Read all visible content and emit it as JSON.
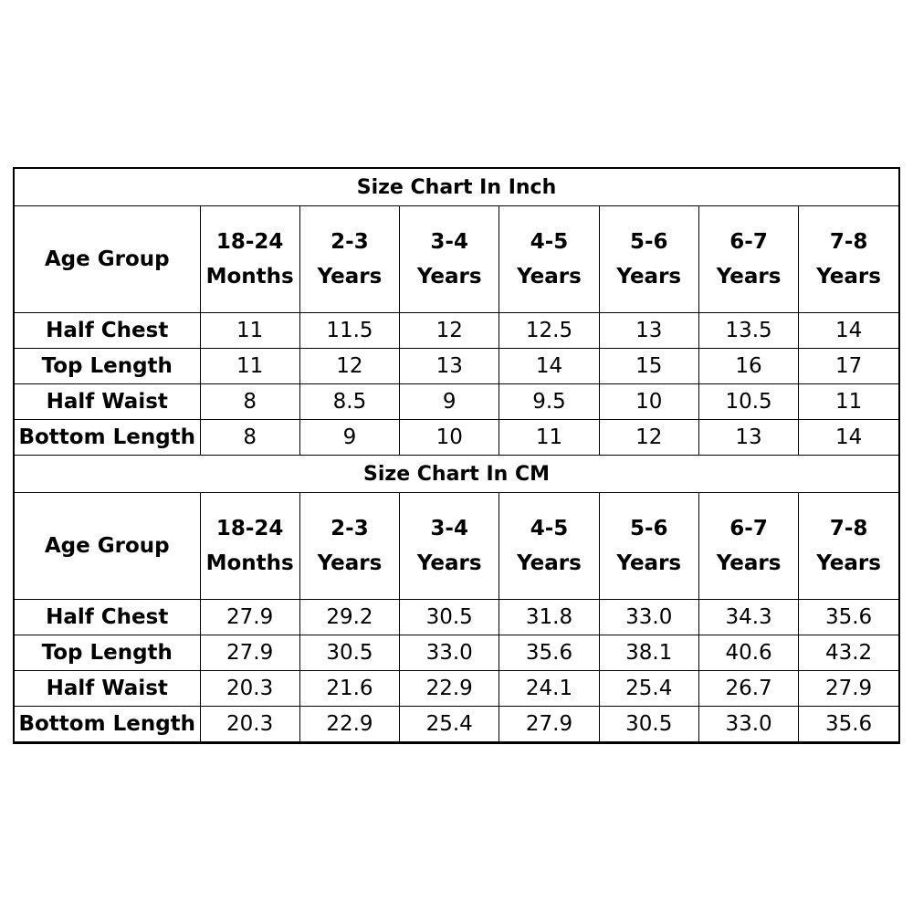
{
  "tables": [
    {
      "title": "Size Chart In Inch",
      "row_header": "Age Group",
      "columns": [
        [
          "18-24",
          "Months"
        ],
        [
          "2-3",
          "Years"
        ],
        [
          "3-4",
          "Years"
        ],
        [
          "4-5",
          "Years"
        ],
        [
          "5-6",
          "Years"
        ],
        [
          "6-7",
          "Years"
        ],
        [
          "7-8",
          "Years"
        ]
      ],
      "rows": [
        {
          "label": "Half Chest",
          "cells": [
            "11",
            "11.5",
            "12",
            "12.5",
            "13",
            "13.5",
            "14"
          ]
        },
        {
          "label": "Top Length",
          "cells": [
            "11",
            "12",
            "13",
            "14",
            "15",
            "16",
            "17"
          ]
        },
        {
          "label": "Half Waist",
          "cells": [
            "8",
            "8.5",
            "9",
            "9.5",
            "10",
            "10.5",
            "11"
          ]
        },
        {
          "label": "Bottom Length",
          "cells": [
            "8",
            "9",
            "10",
            "11",
            "12",
            "13",
            "14"
          ]
        }
      ]
    },
    {
      "title": "Size Chart In CM",
      "row_header": "Age Group",
      "columns": [
        [
          "18-24",
          "Months"
        ],
        [
          "2-3",
          "Years"
        ],
        [
          "3-4",
          "Years"
        ],
        [
          "4-5",
          "Years"
        ],
        [
          "5-6",
          "Years"
        ],
        [
          "6-7",
          "Years"
        ],
        [
          "7-8",
          "Years"
        ]
      ],
      "rows": [
        {
          "label": "Half Chest",
          "cells": [
            "27.9",
            "29.2",
            "30.5",
            "31.8",
            "33.0",
            "34.3",
            "35.6"
          ]
        },
        {
          "label": "Top Length",
          "cells": [
            "27.9",
            "30.5",
            "33.0",
            "35.6",
            "38.1",
            "40.6",
            "43.2"
          ]
        },
        {
          "label": "Half Waist",
          "cells": [
            "20.3",
            "21.6",
            "22.9",
            "24.1",
            "25.4",
            "26.7",
            "27.9"
          ]
        },
        {
          "label": "Bottom Length",
          "cells": [
            "20.3",
            "22.9",
            "25.4",
            "27.9",
            "30.5",
            "33.0",
            "35.6"
          ]
        }
      ]
    }
  ]
}
